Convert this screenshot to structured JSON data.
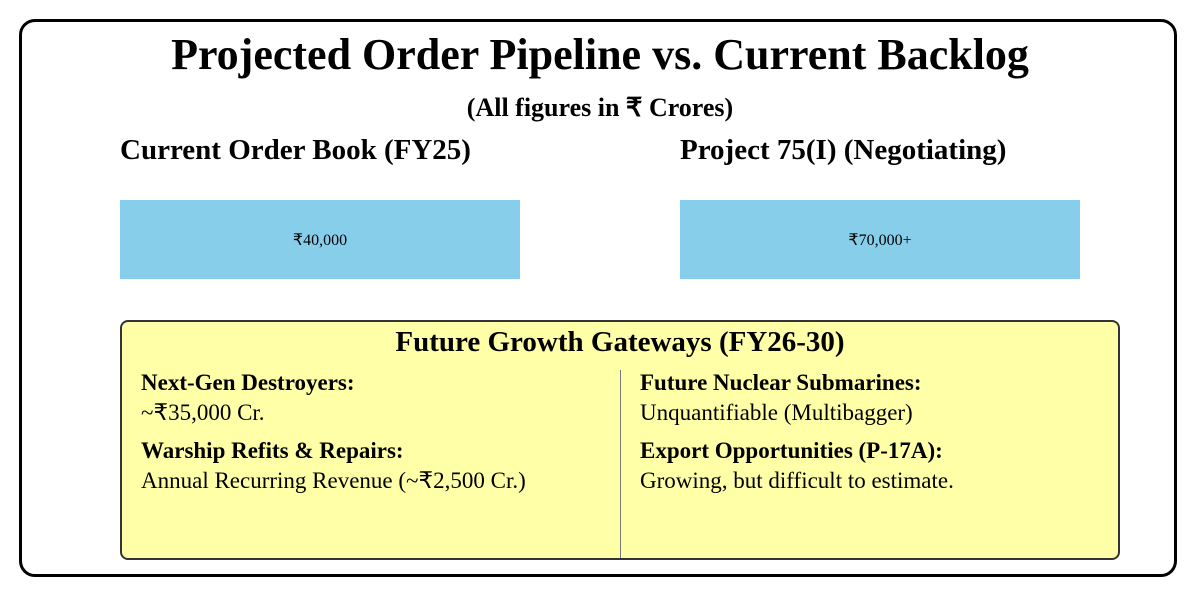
{
  "header": {
    "title": "Projected Order Pipeline vs. Current Backlog",
    "subtitle": "(All figures in ₹ Crores)"
  },
  "cards": [
    {
      "label": "Current Order Book (FY25)",
      "value": "₹40,000"
    },
    {
      "label": "Project 75(I) (Negotiating)",
      "value": "₹70,000+"
    }
  ],
  "future": {
    "title": "Future Growth Gateways (FY26-30)",
    "columns": [
      [
        {
          "name": "Next-Gen Destroyers:",
          "text": "~₹35,000 Cr."
        },
        {
          "name": "Warship Refits & Repairs:",
          "text": "Annual Recurring Revenue (~₹2,500 Cr.)"
        }
      ],
      [
        {
          "name": "Future Nuclear Submarines:",
          "text": "Unquantifiable (Multibagger)"
        },
        {
          "name": "Export Opportunities (P-17A):",
          "text": "Growing, but difficult to estimate."
        }
      ]
    ]
  }
}
